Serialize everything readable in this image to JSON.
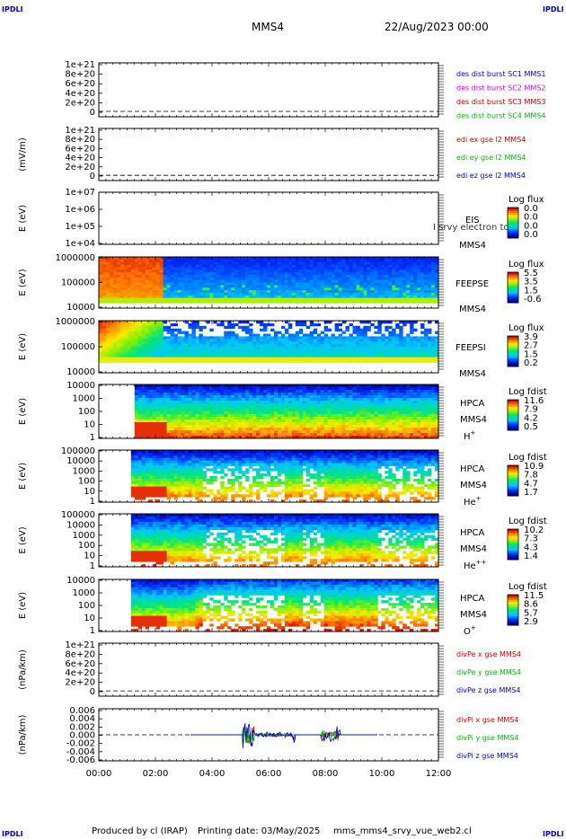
{
  "header": {
    "corner_label": "IPDLI",
    "title": "MMS4",
    "date": "22/Aug/2023 00:00"
  },
  "footer": {
    "produced_by": "Produced by cl (IRAP)",
    "printing_date": "Printing date: 03/May/2025",
    "filename": "mms_mms4_srvy_vue_web2.cl"
  },
  "colors": {
    "red": "#cc0000",
    "magenta": "#dd00dd",
    "green": "#00bb00",
    "blue": "#0000cc"
  },
  "chart_data": [
    {
      "type": "line",
      "ytick_labels": [
        "1e+21",
        "8e+20",
        "6e+20",
        "4e+20",
        "2e+20",
        "0"
      ],
      "legend": [
        {
          "text": "des dist burst SC1 MMS1",
          "color": "#0000cc"
        },
        {
          "text": "des dist burst SC2 MMS2",
          "color": "#dd00dd"
        },
        {
          "text": "des dist burst SC3 MMS3",
          "color": "#cc0000"
        },
        {
          "text": "des dist burst SC4 MMS4",
          "color": "#00bb00"
        }
      ]
    },
    {
      "type": "line",
      "ylabel": "(mV/m)",
      "ytick_labels": [
        "1e+21",
        "8e+20",
        "6e+20",
        "4e+20",
        "2e+20",
        "0"
      ],
      "legend": [
        {
          "text": "edi ex gse l2 MMS4",
          "color": "#cc0000"
        },
        {
          "text": "edi ey gse l2 MMS4",
          "color": "#00bb00"
        },
        {
          "text": "edi ez gse l2 MMS4",
          "color": "#0000cc"
        }
      ]
    },
    {
      "type": "heatmap",
      "ylabel": "E (eV)",
      "ytick_labels": [
        "1e+07",
        "1e+06",
        "1e+05",
        "1e+04"
      ],
      "instrument": "EIS",
      "overlay": "I srvy electron to",
      "spacecraft": "MMS4",
      "cbar_title": "Log flux",
      "cbar_labels": [
        "0.0",
        "0.0",
        "0.0",
        "0.0"
      ]
    },
    {
      "type": "heatmap",
      "ylabel": "E (eV)",
      "ytick_labels": [
        "1000000",
        "100000",
        "10000"
      ],
      "instrument": "FEEPSE",
      "spacecraft": "MMS4",
      "cbar_title": "Log flux",
      "cbar_labels": [
        "5.5",
        "3.5",
        "1.5",
        "-0.6"
      ]
    },
    {
      "type": "heatmap",
      "ylabel": "E (eV)",
      "ytick_labels": [
        "1000000",
        "100000",
        "10000"
      ],
      "instrument": "FEEPSI",
      "spacecraft": "MMS4",
      "cbar_title": "Log flux",
      "cbar_labels": [
        "3.9",
        "2.7",
        "1.5",
        "0.2"
      ]
    },
    {
      "type": "heatmap",
      "ylabel": "E (eV)",
      "ytick_labels": [
        "10000",
        "1000",
        "100",
        "10",
        "1"
      ],
      "instrument": "HPCA",
      "spacecraft": "MMS4",
      "species": "H",
      "species_sup": "+",
      "cbar_title": "Log fdist",
      "cbar_labels": [
        "11.6",
        "7.9",
        "4.2",
        "0.5"
      ]
    },
    {
      "type": "heatmap",
      "ylabel": "E (eV)",
      "ytick_labels": [
        "100000",
        "10000",
        "1000",
        "100",
        "10",
        "1"
      ],
      "instrument": "HPCA",
      "spacecraft": "MMS4",
      "species": "He",
      "species_sup": "+",
      "cbar_title": "Log fdist",
      "cbar_labels": [
        "10.9",
        "7.8",
        "4.7",
        "1.7"
      ]
    },
    {
      "type": "heatmap",
      "ylabel": "E (eV)",
      "ytick_labels": [
        "100000",
        "10000",
        "1000",
        "100",
        "10",
        "1"
      ],
      "instrument": "HPCA",
      "spacecraft": "MMS4",
      "species": "He",
      "species_sup": "++",
      "cbar_title": "Log fdist",
      "cbar_labels": [
        "10.2",
        "7.3",
        "4.3",
        "1.4"
      ]
    },
    {
      "type": "heatmap",
      "ylabel": "E (eV)",
      "ytick_labels": [
        "10000",
        "1000",
        "100",
        "10",
        "1"
      ],
      "instrument": "HPCA",
      "spacecraft": "MMS4",
      "species": "O",
      "species_sup": "+",
      "cbar_title": "Log fdist",
      "cbar_labels": [
        "11.5",
        "8.6",
        "5.7",
        "2.9"
      ]
    },
    {
      "type": "line",
      "ylabel": "(nPa/km)",
      "ytick_labels": [
        "1e+21",
        "8e+20",
        "6e+20",
        "4e+20",
        "2e+20",
        "0"
      ],
      "legend": [
        {
          "text": "divPe x gse MMS4",
          "color": "#cc0000"
        },
        {
          "text": "divPe y gse MMS4",
          "color": "#00bb00"
        },
        {
          "text": "divPe z gse MMS4",
          "color": "#0000cc"
        }
      ]
    },
    {
      "type": "line",
      "ylabel": "(nPa/km)",
      "ytick_labels": [
        "0.006",
        "0.004",
        "0.002",
        "0.000",
        "-0.002",
        "-0.004",
        "-0.006"
      ],
      "ylim": [
        -0.006,
        0.006
      ],
      "legend": [
        {
          "text": "divPi x gse MMS4",
          "color": "#cc0000"
        },
        {
          "text": "divPi y gse MMS4",
          "color": "#00bb00"
        },
        {
          "text": "divPi z gse MMS4",
          "color": "#0000cc"
        }
      ]
    }
  ],
  "time_axis": {
    "tick_labels": [
      "00:00",
      "02:00",
      "04:00",
      "06:00",
      "08:00",
      "10:00",
      "12:00"
    ]
  }
}
